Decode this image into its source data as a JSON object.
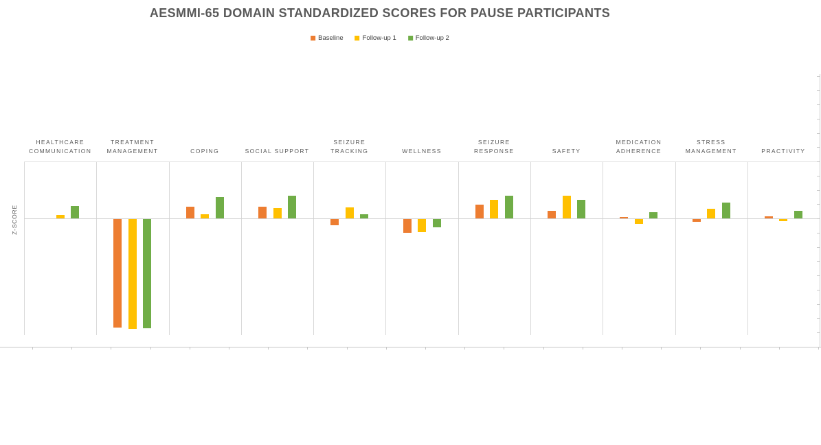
{
  "chart": {
    "title": "AESMMI-65 DOMAIN STANDARDIZED SCORES FOR PAUSE PARTICIPANTS",
    "ylabel": "Z-SCORE"
  },
  "chart_data": {
    "type": "bar",
    "title": "AESMMI-65 DOMAIN STANDARDIZED SCORES FOR PAUSE PARTICIPANTS",
    "xlabel": "",
    "ylabel": "Z-SCORE",
    "legend_position": "top",
    "value_axis_side": "right",
    "zero_line": true,
    "horizontal_gridlines": false,
    "ylim": [
      -2,
      1
    ],
    "minor_tick_step": 0.25,
    "categories": [
      "HEALTHCARE\nCOMMUNICATION",
      "TREATMENT\nMANAGEMENT",
      "COPING",
      "SOCIAL SUPPORT",
      "SEIZURE\nTRACKING",
      "WELLNESS",
      "SEIZURE\nRESPONSE",
      "SAFETY",
      "MEDICATION\nADHERENCE",
      "STRESS\nMANAGEMENT",
      "PRACTIVITY"
    ],
    "series": [
      {
        "name": "Baseline",
        "color": "#ED7D31",
        "values": [
          0.0,
          -1.9,
          0.21,
          0.2,
          -0.11,
          -0.24,
          0.24,
          0.13,
          0.03,
          -0.05,
          0.04
        ]
      },
      {
        "name": "Follow-up 1",
        "color": "#FFC000",
        "values": [
          0.06,
          -1.93,
          0.07,
          0.18,
          0.19,
          -0.23,
          0.32,
          0.4,
          -0.08,
          0.17,
          -0.03
        ]
      },
      {
        "name": "Follow-up 2",
        "color": "#70AD47",
        "values": [
          0.22,
          -1.91,
          0.38,
          0.4,
          0.07,
          -0.14,
          0.4,
          0.32,
          0.11,
          0.28,
          0.13
        ]
      }
    ]
  }
}
